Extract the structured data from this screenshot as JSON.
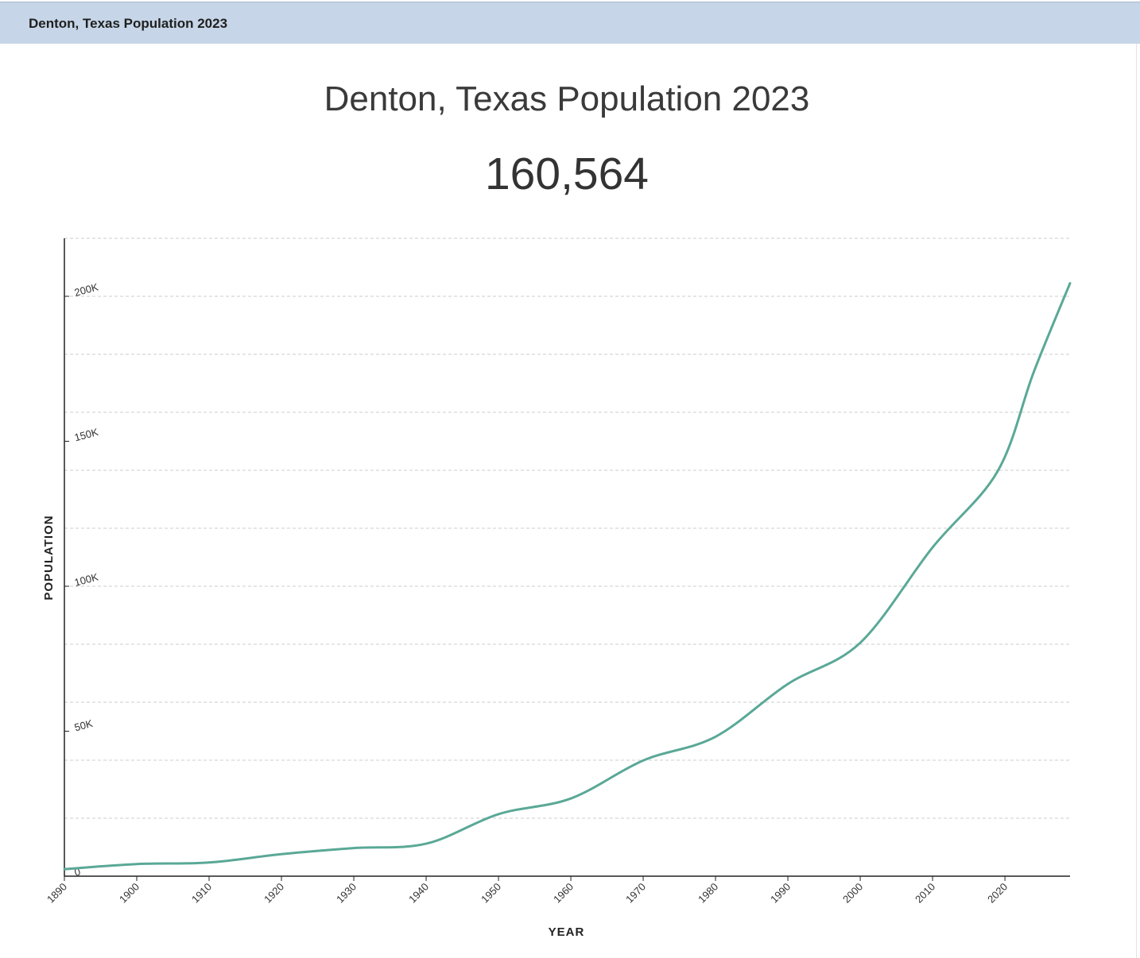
{
  "tab": {
    "title": "Denton, Texas Population 2023"
  },
  "header": {
    "title": "Denton, Texas Population 2023",
    "population": "160,564"
  },
  "colors": {
    "line": "#5aa897",
    "tab_background": "#c6d5e7",
    "grid": "#cccccc"
  },
  "chart_data": {
    "type": "line",
    "xlabel": "YEAR",
    "ylabel": "POPULATION",
    "xlim": [
      1890,
      2029
    ],
    "ylim": [
      0,
      220000
    ],
    "x_ticks": [
      1890,
      1900,
      1910,
      1920,
      1930,
      1940,
      1950,
      1960,
      1970,
      1980,
      1990,
      2000,
      2010,
      2020
    ],
    "y_ticks": [
      {
        "value": 0,
        "label": "0"
      },
      {
        "value": 50000,
        "label": "50K"
      },
      {
        "value": 100000,
        "label": "100K"
      },
      {
        "value": 150000,
        "label": "150K"
      },
      {
        "value": 200000,
        "label": "200K"
      }
    ],
    "grid": true,
    "series": [
      {
        "x": [
          1890,
          1900,
          1910,
          1920,
          1930,
          1940,
          1950,
          1960,
          1970,
          1980,
          1990,
          2000,
          2010,
          2019,
          2024,
          2029
        ],
        "y": [
          2400,
          4200,
          4700,
          7600,
          9700,
          11200,
          21400,
          26800,
          39900,
          48100,
          66300,
          80500,
          113400,
          139700,
          174000,
          204500
        ]
      }
    ]
  }
}
